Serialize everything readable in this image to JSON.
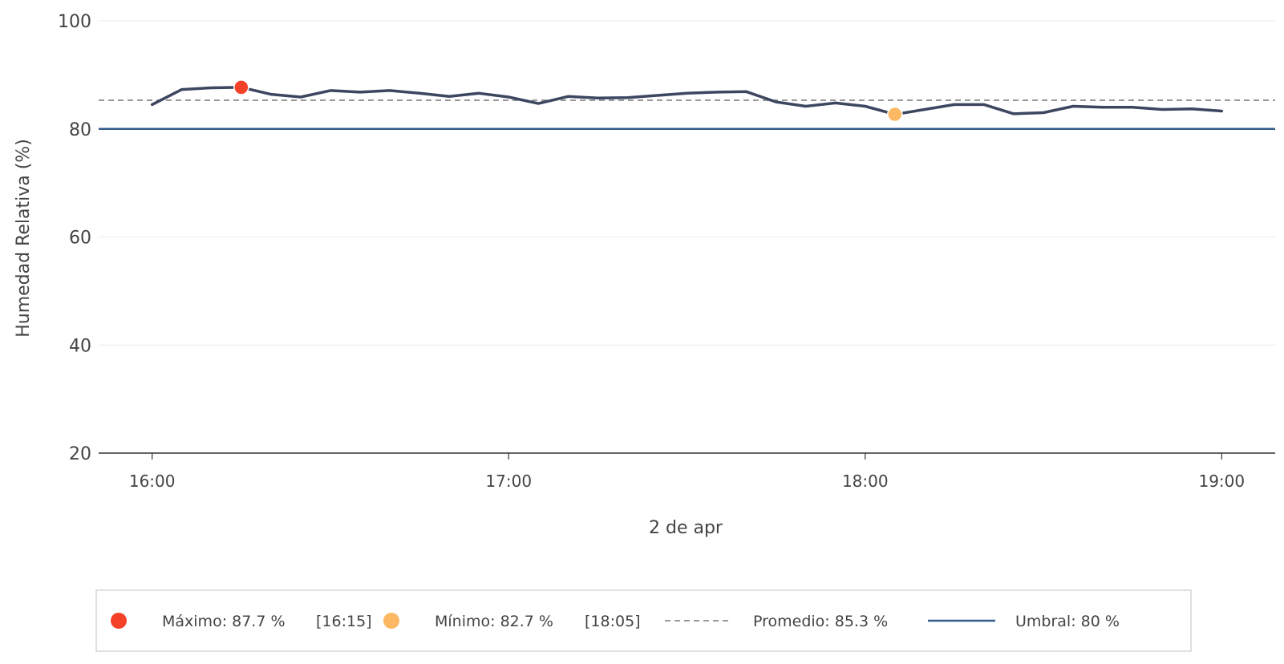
{
  "chart_data": {
    "type": "line",
    "title": "",
    "xlabel": "2 de apr",
    "ylabel": "Humedad Relativa (%)",
    "ylim": [
      20,
      100
    ],
    "yticks": [
      20,
      40,
      60,
      80,
      100
    ],
    "xlim": [
      "15:51",
      "19:09"
    ],
    "xticks": [
      "16:00",
      "17:00",
      "18:00",
      "19:00"
    ],
    "grid": "horizontal",
    "legend_position": "bottom",
    "series": [
      {
        "name": "",
        "color": "#3d4660",
        "x": [
          "16:00",
          "16:05",
          "16:10",
          "16:15",
          "16:20",
          "16:25",
          "16:30",
          "16:35",
          "16:40",
          "16:45",
          "16:50",
          "16:55",
          "17:00",
          "17:05",
          "17:10",
          "17:15",
          "17:20",
          "17:25",
          "17:30",
          "17:35",
          "17:40",
          "17:45",
          "17:50",
          "17:55",
          "18:00",
          "18:05",
          "18:10",
          "18:15",
          "18:20",
          "18:25",
          "18:30",
          "18:35",
          "18:40",
          "18:45",
          "18:50",
          "18:55",
          "19:00"
        ],
        "y": [
          84.5,
          87.3,
          87.6,
          87.7,
          86.4,
          85.9,
          87.1,
          86.8,
          87.1,
          86.6,
          86.0,
          86.6,
          85.9,
          84.7,
          86.0,
          85.7,
          85.8,
          86.2,
          86.6,
          86.8,
          86.9,
          85.0,
          84.2,
          84.8,
          84.2,
          82.7,
          83.6,
          84.5,
          84.5,
          82.8,
          83.0,
          84.2,
          84.0,
          84.0,
          83.6,
          83.7,
          83.3
        ]
      }
    ],
    "markers": {
      "max": {
        "label": "Máximo: 87.7 %",
        "time_label": "[16:15]",
        "x": "16:15",
        "y": 87.7,
        "color": "#f44228"
      },
      "min": {
        "label": "Mínimo: 82.7 %",
        "time_label": "[18:05]",
        "x": "18:05",
        "y": 82.7,
        "color": "#fcb862"
      }
    },
    "average": {
      "label": "Promedio: 85.3 %",
      "value": 85.3,
      "color": "#999999"
    },
    "threshold": {
      "label": "Umbral: 80 %",
      "value": 80,
      "color": "#355a8e"
    }
  }
}
